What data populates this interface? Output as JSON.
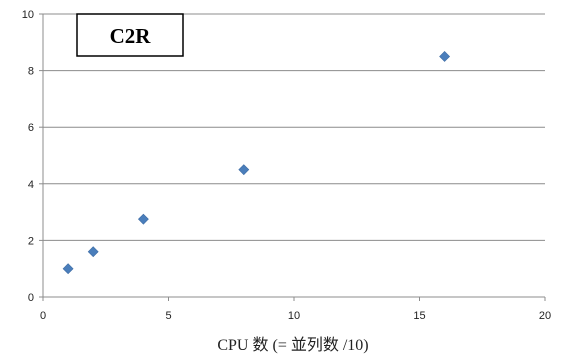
{
  "chart_data": {
    "type": "scatter",
    "title": "C2R",
    "xlabel": "CPU 数  (= 並列数 /10)",
    "ylabel": "",
    "xlim": [
      0,
      20
    ],
    "ylim": [
      0,
      10
    ],
    "x_ticks": [
      "0",
      "5",
      "10",
      "15",
      "20"
    ],
    "y_ticks": [
      "0",
      "2",
      "4",
      "6",
      "8",
      "10"
    ],
    "grid": {
      "horizontal": true,
      "vertical": false
    },
    "legend": "none",
    "series": [
      {
        "marker": "diamond",
        "color": "#4a7ebb",
        "points": [
          {
            "x": 1,
            "y": 1.0
          },
          {
            "x": 2,
            "y": 1.6
          },
          {
            "x": 4,
            "y": 2.75
          },
          {
            "x": 8,
            "y": 4.5
          },
          {
            "x": 16,
            "y": 8.5
          }
        ]
      }
    ]
  }
}
